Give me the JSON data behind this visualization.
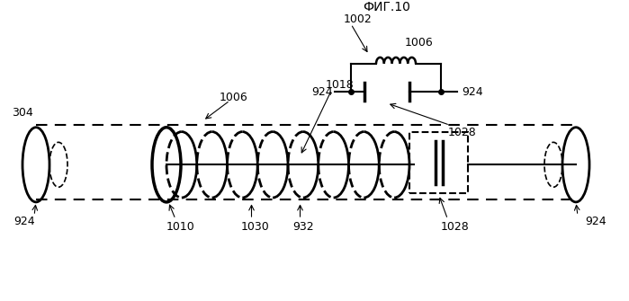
{
  "bg_color": "#ffffff",
  "line_color": "#000000",
  "dashed_color": "#555555",
  "fig_label": "ФИГ.10",
  "labels": {
    "924_left": "924",
    "924_right": "924",
    "1010": "1010",
    "1030": "1030",
    "932": "932",
    "1028_top": "1028",
    "1006": "1006",
    "1018": "1018",
    "304": "304",
    "1028_circ": "1028",
    "924_circ_left": "924",
    "924_circ_right": "924",
    "1006_circ": "1006",
    "1002": "1002"
  }
}
